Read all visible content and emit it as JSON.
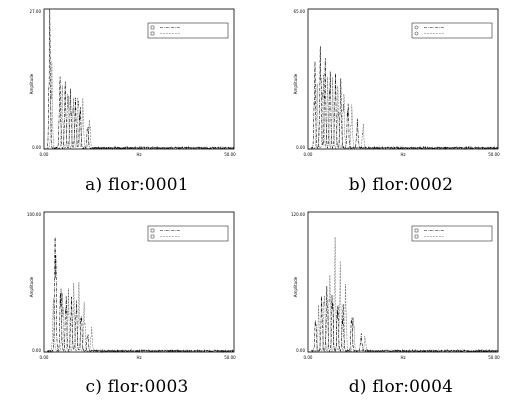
{
  "chart_data": [
    {
      "type": "line",
      "caption": "a) flor:0001",
      "ylabel": "Amplitude",
      "ytick_top": "27.00",
      "ytick_bottom": "0.00",
      "xtick_left": "0.00",
      "xtick_mid": "Hz",
      "xtick_right": "50.00",
      "xlim": [
        0,
        50
      ],
      "ylim": [
        0,
        27
      ],
      "legend": {
        "position": "top-right"
      },
      "series": [
        {
          "style": "dash-dot",
          "peaks": [
            [
              1.5,
              27
            ],
            [
              4.2,
              14
            ],
            [
              5.6,
              13
            ],
            [
              7.0,
              12
            ],
            [
              8.3,
              10
            ],
            [
              9.5,
              9
            ],
            [
              11.5,
              5
            ]
          ]
        },
        {
          "style": "dotted",
          "peaks": [
            [
              2.0,
              18
            ],
            [
              4.8,
              12
            ],
            [
              6.3,
              13
            ],
            [
              7.7,
              11
            ],
            [
              9.0,
              12
            ],
            [
              10.2,
              10
            ],
            [
              12.0,
              6
            ]
          ]
        }
      ]
    },
    {
      "type": "line",
      "caption": "b) flor:0002",
      "ylabel": "Amplitude",
      "ytick_top": "65.00",
      "ytick_bottom": "0.00",
      "xtick_left": "0.00",
      "xtick_mid": "Hz",
      "xtick_right": "50.00",
      "xlim": [
        0,
        50
      ],
      "ylim": [
        0,
        65
      ],
      "legend": {
        "position": "top-right"
      },
      "series": [
        {
          "style": "dash-dot",
          "peaks": [
            [
              1.8,
              41
            ],
            [
              3.3,
              52
            ],
            [
              4.5,
              44
            ],
            [
              5.8,
              40
            ],
            [
              7.2,
              37
            ],
            [
              8.6,
              33
            ],
            [
              10.5,
              24
            ],
            [
              13.0,
              14
            ]
          ]
        },
        {
          "style": "dotted",
          "peaks": [
            [
              2.4,
              30
            ],
            [
              4.0,
              38
            ],
            [
              5.2,
              36
            ],
            [
              6.5,
              33
            ],
            [
              7.9,
              30
            ],
            [
              9.4,
              29
            ],
            [
              11.5,
              21
            ],
            [
              14.5,
              12
            ]
          ]
        }
      ]
    },
    {
      "type": "line",
      "caption": "c) flor:0003",
      "ylabel": "Amplitude",
      "ytick_top": "100.00",
      "ytick_bottom": "0.00",
      "xtick_left": "0.00",
      "xtick_mid": "Hz",
      "xtick_right": "50.00",
      "xlim": [
        0,
        50
      ],
      "ylim": [
        0,
        100
      ],
      "legend": {
        "position": "top-right"
      },
      "series": [
        {
          "style": "dash-dot",
          "peaks": [
            [
              3.0,
              97
            ],
            [
              4.4,
              54
            ],
            [
              5.8,
              44
            ],
            [
              7.2,
              42
            ],
            [
              8.5,
              40
            ],
            [
              9.8,
              30
            ],
            [
              11.5,
              14
            ]
          ]
        },
        {
          "style": "dotted",
          "peaks": [
            [
              2.5,
              40
            ],
            [
              4.9,
              46
            ],
            [
              6.4,
              48
            ],
            [
              7.8,
              50
            ],
            [
              9.2,
              49
            ],
            [
              10.6,
              36
            ],
            [
              12.5,
              18
            ]
          ]
        }
      ]
    },
    {
      "type": "line",
      "caption": "d) flor:0004",
      "ylabel": "Amplitude",
      "ytick_top": "120.00",
      "ytick_bottom": "0.00",
      "xtick_left": "0.00",
      "xtick_mid": "Hz",
      "xtick_right": "50.00",
      "xlim": [
        0,
        50
      ],
      "ylim": [
        0,
        120
      ],
      "legend": {
        "position": "top-right"
      },
      "series": [
        {
          "style": "dash-dot",
          "peaks": [
            [
              2.0,
              31
            ],
            [
              3.6,
              50
            ],
            [
              5.0,
              62
            ],
            [
              6.4,
              57
            ],
            [
              7.8,
              48
            ],
            [
              9.2,
              44
            ],
            [
              11.5,
              34
            ],
            [
              14.0,
              15
            ]
          ]
        },
        {
          "style": "dotted",
          "peaks": [
            [
              2.8,
              40
            ],
            [
              4.3,
              56
            ],
            [
              5.7,
              70
            ],
            [
              7.1,
              100
            ],
            [
              8.5,
              78
            ],
            [
              9.9,
              60
            ],
            [
              12.0,
              32
            ],
            [
              15.0,
              14
            ]
          ]
        }
      ]
    }
  ]
}
